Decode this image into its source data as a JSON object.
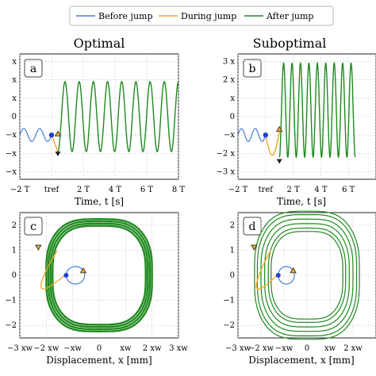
{
  "legend": [
    {
      "label": "Before jump",
      "color": "#4a7fd6"
    },
    {
      "label": "During jump",
      "color": "#f2a91e"
    },
    {
      "label": "After jump",
      "color": "#1f8a1f"
    }
  ],
  "panels": [
    {
      "letter": "a",
      "title": "Optimal"
    },
    {
      "letter": "b",
      "title": "Suboptimal"
    },
    {
      "letter": "c"
    },
    {
      "letter": "d"
    }
  ],
  "axes": {
    "time_xlabel": "Time, t [s]",
    "disp_xlabel": "Displacement, x [mm]",
    "time_xticks": [
      "−2 T_d",
      "t_ref",
      "2 T_d",
      "4 T_d",
      "6 T_d",
      "8 T_d"
    ],
    "time_yticks_a": [
      "x_w",
      "x_w",
      "x_w",
      "0",
      "−x_w",
      "−x_w",
      "−x_w"
    ],
    "time_yticks_b": [
      "3 x_w",
      "2 x_w",
      "x_w",
      "0",
      "−x_w",
      "−2 x_w",
      "−3 x_w"
    ],
    "phase_yticks": [
      "2",
      "1",
      "0",
      "−1",
      "−2"
    ],
    "phase_xticks": [
      "−3 x_w",
      "−2 x_w",
      "−x_w",
      "0",
      "x_w",
      "2 x_w",
      "3 x_w"
    ]
  },
  "chart_data": [
    {
      "panel": "a",
      "type": "line",
      "xlabel": "Time, t [s]",
      "ylim": [
        -3,
        3
      ],
      "series": [
        {
          "name": "Before jump",
          "description_values": {
            "amplitude": 0.35,
            "center": -1,
            "t_range": [
              -2,
              0
            ]
          }
        },
        {
          "name": "During jump",
          "description_values": {
            "from": [
              0,
              -1
            ],
            "to": [
              0.4,
              -1.9
            ]
          }
        },
        {
          "name": "After jump",
          "description_values": {
            "amplitude_upper": 1.9,
            "amplitude_lower": -1.9,
            "t_range": [
              0.4,
              8
            ],
            "cycles": 8.5
          }
        }
      ]
    },
    {
      "panel": "b",
      "type": "line",
      "xlabel": "Time, t [s]",
      "ylim": [
        -3,
        3
      ],
      "series": [
        {
          "name": "Before jump",
          "description_values": {
            "amplitude": 0.35,
            "center": -1,
            "t_range": [
              -2,
              0
            ]
          }
        },
        {
          "name": "During jump",
          "description_values": {
            "min": -2.2,
            "t_range": [
              0,
              1
            ]
          }
        },
        {
          "name": "After jump",
          "description_values": {
            "amplitude_upper": 2.9,
            "amplitude_lower": -2.2,
            "t_range": [
              1,
              8
            ]
          }
        }
      ]
    },
    {
      "panel": "c",
      "type": "line",
      "xlabel": "Displacement, x [mm]",
      "xlim": [
        -3,
        3
      ],
      "ylim": [
        -2.5,
        2.5
      ]
    },
    {
      "panel": "d",
      "type": "line",
      "xlabel": "Displacement, x [mm]",
      "xlim": [
        -3,
        3
      ],
      "ylim": [
        -2.5,
        2.5
      ]
    }
  ]
}
